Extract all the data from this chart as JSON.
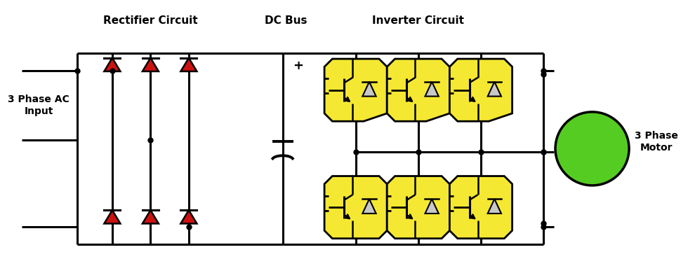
{
  "background_color": "#ffffff",
  "label_rectifier": "Rectifier Circuit",
  "label_dcbus": "DC Bus",
  "label_inverter": "Inverter Circuit",
  "label_input": "3 Phase AC\nInput",
  "label_motor": "3 Phase\nMotor",
  "line_color": "#000000",
  "diode_red": "#cc1111",
  "igbt_yellow": "#f5e832",
  "motor_green": "#55cc22",
  "line_width": 2.2,
  "figsize": [
    9.8,
    4.0
  ],
  "dpi": 100
}
